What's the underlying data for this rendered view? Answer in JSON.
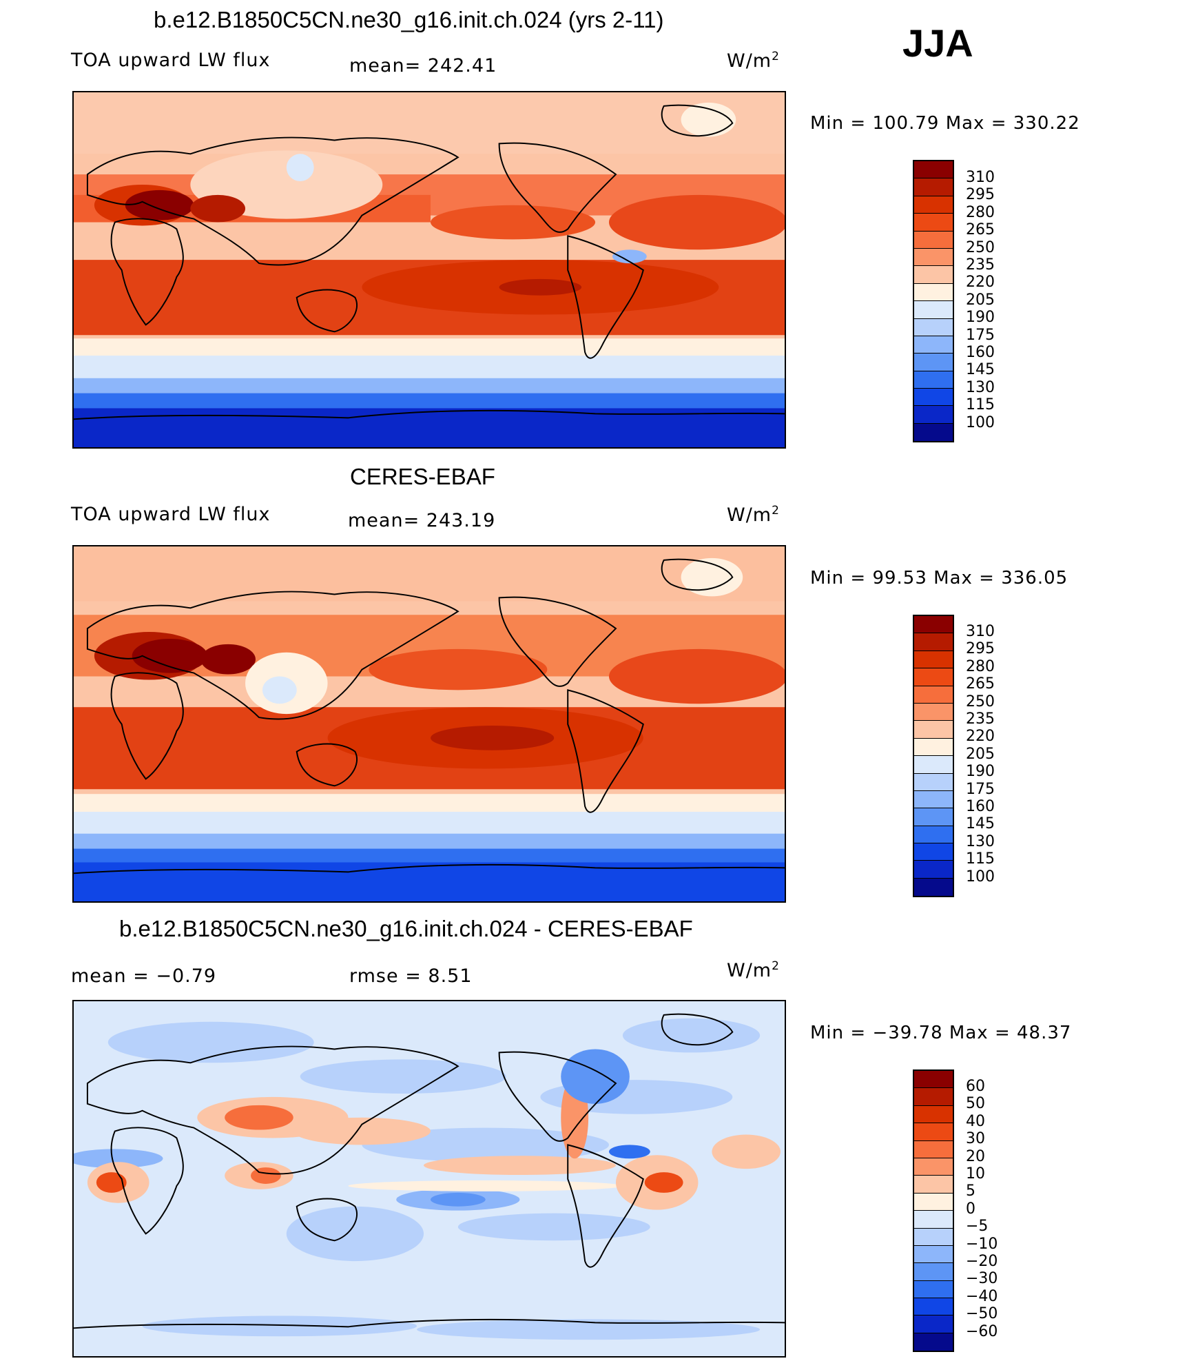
{
  "season_label": "JJA",
  "panels": [
    {
      "title": "b.e12.B1850C5CN.ne30_g16.init.ch.024 (yrs 2-11)",
      "left_label": "TOA upward LW flux",
      "center_label": "mean=  242.41",
      "units": "W/m",
      "units_exp": "2",
      "minmax": "Min  =  100.79  Max  =  330.22",
      "palette": "lw"
    },
    {
      "title": "CERES-EBAF",
      "left_label": "TOA upward LW flux",
      "center_label": "mean=  243.19",
      "units": "W/m",
      "units_exp": "2",
      "minmax": "Min  =   99.53  Max  =  336.05",
      "palette": "lw"
    },
    {
      "title": "b.e12.B1850C5CN.ne30_g16.init.ch.024 - CERES-EBAF",
      "left_label": "mean  =     −0.79",
      "center_label": "rmse  =     8.51",
      "units": "W/m",
      "units_exp": "2",
      "minmax": "Min  =  −39.78  Max  =    48.37",
      "palette": "diff"
    }
  ],
  "colorbars": {
    "lw": {
      "labels": [
        "310",
        "295",
        "280",
        "265",
        "250",
        "235",
        "220",
        "205",
        "190",
        "175",
        "160",
        "145",
        "130",
        "115",
        "100"
      ],
      "colors": [
        "#8a0000",
        "#b51b00",
        "#d83200",
        "#ec4a14",
        "#f66e3c",
        "#fa9468",
        "#fcc5a6",
        "#fff1e0",
        "#dbe9fb",
        "#b7d1fb",
        "#8db6fa",
        "#5d95f5",
        "#2f6ff0",
        "#1046e6",
        "#0a27c8",
        "#050a8c"
      ]
    },
    "diff": {
      "labels": [
        "60",
        "50",
        "40",
        "30",
        "20",
        "10",
        "5",
        "0",
        "−5",
        "−10",
        "−20",
        "−30",
        "−40",
        "−50",
        "−60"
      ],
      "colors": [
        "#8a0000",
        "#b51b00",
        "#d83200",
        "#ec4a14",
        "#f66e3c",
        "#fa9468",
        "#fcc5a6",
        "#fff1e0",
        "#dbe9fb",
        "#b7d1fb",
        "#8db6fa",
        "#5d95f5",
        "#2f6ff0",
        "#1046e6",
        "#0a27c8",
        "#050a8c"
      ]
    }
  }
}
